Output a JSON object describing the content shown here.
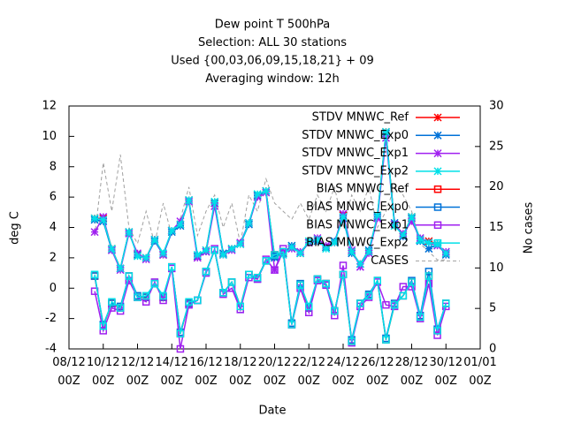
{
  "chart_data": {
    "type": "line",
    "title": [
      "Dew point T 500hPa",
      "Selection: ALL      30 stations",
      "Used {00,03,06,09,15,18,21} + 09",
      "Averaging window: 12h"
    ],
    "xlabel": "Date",
    "ylabel": "deg C",
    "y2label": "No cases",
    "xlim": [
      0,
      24
    ],
    "xticks": [
      {
        "value": 0,
        "label": "08/12\n00Z"
      },
      {
        "value": 2,
        "label": "10/12\n00Z"
      },
      {
        "value": 4,
        "label": "12/12\n00Z"
      },
      {
        "value": 6,
        "label": "14/12\n00Z"
      },
      {
        "value": 8,
        "label": "16/12\n00Z"
      },
      {
        "value": 10,
        "label": "18/12\n00Z"
      },
      {
        "value": 12,
        "label": "20/12\n00Z"
      },
      {
        "value": 14,
        "label": "22/12\n00Z"
      },
      {
        "value": 16,
        "label": "24/12\n00Z"
      },
      {
        "value": 18,
        "label": "26/12\n00Z"
      },
      {
        "value": 20,
        "label": "28/12\n00Z"
      },
      {
        "value": 22,
        "label": "30/12\n00Z"
      },
      {
        "value": 24,
        "label": "01/01\n00Z"
      }
    ],
    "ylim": [
      -4,
      12
    ],
    "yticks": [
      -4,
      -2,
      0,
      2,
      4,
      6,
      8,
      10,
      12
    ],
    "y2lim": [
      0,
      30
    ],
    "y2ticks": [
      0,
      5,
      10,
      15,
      20,
      25,
      30
    ],
    "legend": "top-right",
    "grid": false,
    "x": [
      1.5,
      2,
      2.5,
      3,
      3.5,
      4,
      4.5,
      5,
      5.5,
      6,
      6.5,
      7,
      7.5,
      8,
      8.5,
      9,
      9.5,
      10,
      10.5,
      11,
      11.5,
      12,
      12.5,
      13,
      13.5,
      14,
      14.5,
      15,
      15.5,
      16,
      16.5,
      17,
      17.5,
      18,
      18.5,
      19,
      19.5,
      20,
      20.5,
      21,
      21.5,
      22
    ],
    "series": [
      {
        "name": "STDV MNWC_Ref",
        "color": "#ff0000",
        "marker": "star",
        "values": [
          4.6,
          4.6,
          2.6,
          1.3,
          3.7,
          2.2,
          2.0,
          3.2,
          2.2,
          3.8,
          4.2,
          5.8,
          2.1,
          2.5,
          5.6,
          2.2,
          2.6,
          2.9,
          4.3,
          6.1,
          6.4,
          2.1,
          2.3,
          2.7,
          2.3,
          3.0,
          3.2,
          2.7,
          3.0,
          4.8,
          2.4,
          1.6,
          2.4,
          4.8,
          10.3,
          4.2,
          3.5,
          4.7,
          3.2,
          3.1,
          2.9,
          2.3
        ]
      },
      {
        "name": "STDV MNWC_Exp0",
        "color": "#0072d8",
        "marker": "star",
        "values": [
          4.5,
          4.4,
          2.5,
          1.3,
          3.7,
          2.2,
          2.0,
          3.1,
          2.2,
          3.7,
          4.1,
          5.8,
          2.1,
          2.4,
          5.6,
          2.3,
          2.6,
          2.9,
          4.2,
          6.1,
          6.4,
          2.0,
          2.3,
          2.8,
          2.3,
          3.0,
          3.1,
          2.7,
          3.1,
          4.6,
          2.3,
          1.6,
          2.5,
          4.7,
          10.2,
          4.3,
          3.4,
          4.6,
          3.1,
          2.6,
          2.9,
          2.2
        ]
      },
      {
        "name": "STDV MNWC_Exp1",
        "color": "#a020f0",
        "marker": "star",
        "values": [
          3.7,
          4.7,
          2.5,
          1.2,
          3.6,
          2.3,
          1.9,
          3.2,
          2.2,
          3.8,
          4.4,
          5.7,
          2.0,
          2.4,
          5.4,
          2.2,
          2.5,
          3.0,
          4.3,
          6.0,
          6.3,
          1.2,
          2.4,
          2.6,
          2.4,
          3.0,
          3.3,
          2.8,
          3.0,
          4.9,
          2.5,
          1.4,
          2.3,
          4.6,
          9.9,
          4.2,
          3.6,
          4.4,
          3.3,
          3.0,
          2.8,
          2.4
        ]
      },
      {
        "name": "STDV MNWC_Exp2",
        "color": "#00e0e8",
        "marker": "star",
        "values": [
          4.6,
          4.5,
          2.6,
          1.3,
          3.7,
          2.1,
          2.0,
          3.2,
          2.3,
          3.8,
          4.2,
          5.8,
          2.2,
          2.5,
          5.7,
          2.2,
          2.6,
          2.9,
          4.3,
          6.2,
          6.4,
          2.1,
          2.2,
          2.7,
          2.3,
          3.1,
          3.2,
          2.6,
          3.0,
          4.7,
          2.4,
          1.6,
          2.4,
          4.8,
          10.3,
          4.1,
          3.5,
          4.7,
          3.2,
          3.0,
          2.9,
          2.3
        ]
      },
      {
        "name": "BIAS MNWC_Ref",
        "color": "#ff0000",
        "marker": "square",
        "values": [
          0.8,
          -2.5,
          -1.0,
          -1.3,
          0.8,
          -0.6,
          -0.6,
          0.3,
          -0.6,
          1.4,
          -3.0,
          -1.0,
          -0.8,
          1.1,
          2.5,
          -0.3,
          0.4,
          -1.2,
          0.9,
          0.7,
          1.8,
          2.2,
          2.4,
          -2.4,
          0.2,
          -1.3,
          0.6,
          0.3,
          -1.5,
          0.9,
          -3.5,
          -1.0,
          -0.5,
          0.5,
          -3.4,
          -1.1,
          -0.5,
          0.4,
          -1.9,
          0.8,
          -2.8,
          -1.0
        ]
      },
      {
        "name": "BIAS MNWC_Exp0",
        "color": "#0072d8",
        "marker": "square",
        "values": [
          0.8,
          -2.4,
          -1.0,
          -1.2,
          0.8,
          -0.5,
          -0.6,
          0.3,
          -0.6,
          1.4,
          -2.9,
          -1.0,
          -0.8,
          1.1,
          2.5,
          -0.3,
          0.4,
          -1.4,
          0.9,
          0.6,
          1.8,
          2.1,
          2.4,
          -2.3,
          0.3,
          -1.3,
          0.6,
          0.3,
          -1.5,
          0.9,
          -3.4,
          -1.0,
          -0.4,
          0.5,
          -3.3,
          -1.0,
          -0.5,
          0.5,
          -1.8,
          1.1,
          -2.7,
          -1.0
        ]
      },
      {
        "name": "BIAS MNWC_Exp1",
        "color": "#a020f0",
        "marker": "square",
        "values": [
          -0.2,
          -2.8,
          -1.3,
          -1.5,
          0.5,
          -0.6,
          -0.9,
          0.4,
          -0.8,
          1.3,
          -4.0,
          -1.1,
          -0.8,
          1.0,
          2.6,
          -0.4,
          0.0,
          -1.4,
          0.7,
          0.6,
          1.9,
          1.2,
          2.6,
          -2.4,
          0.0,
          -1.6,
          0.5,
          0.2,
          -1.8,
          1.5,
          -3.6,
          -1.2,
          -0.6,
          0.4,
          -1.1,
          -1.2,
          0.1,
          0.1,
          -2.0,
          0.3,
          -3.1,
          -1.2
        ]
      },
      {
        "name": "BIAS MNWC_Exp2",
        "color": "#00e0e8",
        "marker": "square",
        "values": [
          0.9,
          -2.5,
          -0.9,
          -1.3,
          0.8,
          -0.6,
          -0.5,
          0.3,
          -0.5,
          1.4,
          -3.0,
          -0.9,
          -0.8,
          1.1,
          2.5,
          -0.3,
          0.4,
          -1.2,
          0.9,
          0.7,
          1.8,
          2.2,
          2.4,
          -2.4,
          0.2,
          -1.2,
          0.6,
          0.3,
          -1.5,
          0.9,
          -3.5,
          -1.0,
          -0.5,
          0.5,
          -3.4,
          -1.1,
          -0.5,
          0.4,
          -1.9,
          0.8,
          -2.8,
          -1.0
        ]
      },
      {
        "name": "CASES",
        "color": "#a0a0a0",
        "dashed": true,
        "axis": "y2",
        "values": [
          14,
          23,
          17,
          24,
          15,
          13,
          17,
          13,
          18,
          14,
          16,
          20,
          14,
          17,
          19,
          15,
          18,
          13,
          19,
          17,
          21,
          18,
          17,
          16,
          18,
          16,
          19,
          17,
          20,
          15,
          19,
          17,
          20,
          15,
          17,
          20,
          19,
          17,
          13,
          12,
          11,
          11
        ]
      }
    ]
  }
}
